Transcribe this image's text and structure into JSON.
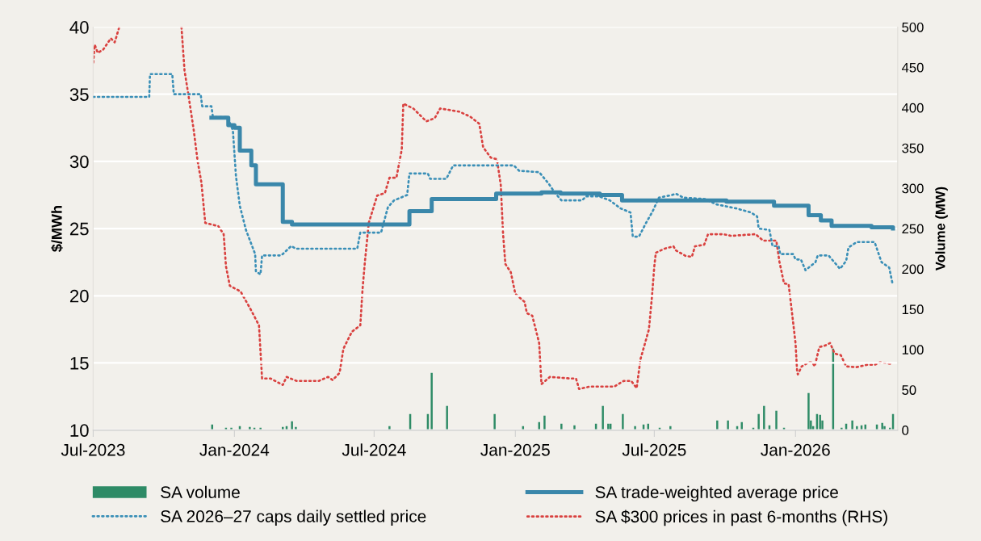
{
  "chart_data": {
    "type": "line",
    "ylabel": "$/MWh",
    "y2label": "Volume (MW)",
    "xlim": [
      "2023-07-01",
      "2026-05-14"
    ],
    "xticks": [
      {
        "value": "2023-07-01",
        "label": "Jul-2023"
      },
      {
        "value": "2024-01-01",
        "label": "Jan-2024"
      },
      {
        "value": "2024-07-01",
        "label": "Jul-2024"
      },
      {
        "value": "2025-01-01",
        "label": "Jan-2025"
      },
      {
        "value": "2025-07-01",
        "label": "Jul-2025"
      },
      {
        "value": "2026-01-01",
        "label": "Jan-2026"
      }
    ],
    "ylim": [
      10,
      40
    ],
    "yticks": [
      10,
      15,
      20,
      25,
      30,
      35,
      40
    ],
    "y2lim": [
      0,
      500
    ],
    "y2ticks": [
      0,
      50,
      100,
      150,
      200,
      250,
      300,
      350,
      400,
      450,
      500
    ],
    "grid": "y",
    "legend": "bottom",
    "series": [
      {
        "name": "SA volume",
        "type": "bar",
        "axis": "y2",
        "color": "#2e8b66",
        "x": [
          "2023-12-03",
          "2023-12-21",
          "2023-12-28",
          "2024-01-08",
          "2024-01-21",
          "2024-01-27",
          "2024-02-04",
          "2024-03-04",
          "2024-03-09",
          "2024-03-16",
          "2024-03-21",
          "2024-07-21",
          "2024-08-17",
          "2024-09-09",
          "2024-09-14",
          "2024-10-04",
          "2024-12-05",
          "2025-01-11",
          "2025-02-01",
          "2025-02-08",
          "2025-03-02",
          "2025-03-19",
          "2025-04-16",
          "2025-04-25",
          "2025-05-02",
          "2025-05-05",
          "2025-05-21",
          "2025-06-06",
          "2025-06-17",
          "2025-06-23",
          "2025-07-08",
          "2025-07-22",
          "2025-09-21",
          "2025-10-05",
          "2025-10-17",
          "2025-10-23",
          "2025-11-07",
          "2025-11-14",
          "2025-11-21",
          "2025-11-28",
          "2025-12-07",
          "2025-12-17",
          "2026-01-18",
          "2026-01-21",
          "2026-01-24",
          "2026-01-29",
          "2026-02-02",
          "2026-02-05",
          "2026-02-19",
          "2026-03-02",
          "2026-03-08",
          "2026-03-16",
          "2026-03-22",
          "2026-03-28",
          "2026-04-02",
          "2026-04-17",
          "2026-04-24",
          "2026-04-27",
          "2026-05-04",
          "2026-05-08"
        ],
        "values": [
          7,
          3,
          3,
          5,
          4,
          3,
          3,
          4,
          5,
          11,
          4,
          5,
          20,
          20,
          71,
          30,
          20,
          5,
          10,
          18,
          8,
          6,
          8,
          30,
          8,
          8,
          20,
          5,
          7,
          8,
          3,
          5,
          12,
          12,
          5,
          10,
          3,
          20,
          30,
          6,
          24,
          3,
          46,
          12,
          5,
          20,
          19,
          12,
          101,
          3,
          8,
          12,
          5,
          6,
          7,
          7,
          9,
          5,
          3,
          20
        ]
      },
      {
        "name": "SA 2026–27 caps daily settled price",
        "line_style": "dotted",
        "color": "#3a8fb7",
        "x": [
          "2023-07-01",
          "2023-09-12",
          "2023-09-13",
          "2023-10-12",
          "2023-10-14",
          "2023-11-18",
          "2023-11-20",
          "2023-12-02",
          "2023-12-04",
          "2023-12-23",
          "2023-12-30",
          "2024-01-03",
          "2024-01-08",
          "2024-01-16",
          "2024-01-28",
          "2024-01-29",
          "2024-02-04",
          "2024-02-06",
          "2024-03-02",
          "2024-03-15",
          "2024-03-21",
          "2024-06-09",
          "2024-06-13",
          "2024-07-10",
          "2024-07-19",
          "2024-07-27",
          "2024-08-13",
          "2024-08-16",
          "2024-09-09",
          "2024-09-12",
          "2024-10-03",
          "2024-10-12",
          "2024-12-30",
          "2025-01-06",
          "2025-02-01",
          "2025-02-14",
          "2025-02-21",
          "2025-03-02",
          "2025-03-29",
          "2025-04-03",
          "2025-04-20",
          "2025-05-04",
          "2025-05-18",
          "2025-05-31",
          "2025-06-03",
          "2025-06-11",
          "2025-06-21",
          "2025-06-29",
          "2025-07-07",
          "2025-07-24",
          "2025-07-29",
          "2025-08-08",
          "2025-09-05",
          "2025-09-20",
          "2025-10-16",
          "2025-11-04",
          "2025-11-12",
          "2025-11-14",
          "2025-11-28",
          "2025-12-02",
          "2025-12-10",
          "2025-12-12",
          "2025-12-29",
          "2026-01-01",
          "2026-01-08",
          "2026-01-14",
          "2026-01-27",
          "2026-01-30",
          "2026-02-13",
          "2026-02-28",
          "2026-03-08",
          "2026-03-11",
          "2026-03-22",
          "2026-04-14",
          "2026-04-23",
          "2026-05-03",
          "2026-05-07"
        ],
        "values": [
          34.8,
          34.8,
          36.5,
          36.5,
          35.0,
          35.0,
          34.1,
          34.1,
          33.3,
          33.3,
          32.3,
          28.9,
          26.7,
          24.9,
          23.1,
          21.8,
          21.6,
          23.0,
          23.0,
          23.7,
          23.5,
          23.5,
          24.7,
          24.7,
          26.6,
          27.1,
          27.5,
          29.1,
          29.1,
          28.7,
          28.7,
          29.7,
          29.7,
          29.3,
          29.2,
          28.3,
          27.7,
          27.1,
          27.1,
          27.4,
          27.4,
          27.1,
          26.5,
          26.2,
          24.4,
          24.4,
          25.5,
          26.3,
          27.3,
          27.5,
          27.6,
          27.3,
          27.2,
          26.8,
          26.5,
          26.2,
          25.9,
          25.0,
          24.9,
          23.7,
          23.7,
          23.1,
          23.1,
          22.7,
          22.7,
          21.9,
          22.5,
          23.0,
          23.0,
          22.0,
          22.6,
          23.6,
          24.0,
          24.0,
          22.5,
          22.1,
          21.0
        ]
      },
      {
        "name": "SA trade-weighted average price",
        "type": "step",
        "line_style": "solid",
        "color": "#3a87aa",
        "x": [
          "2023-12-02",
          "2023-12-24",
          "2024-01-01",
          "2024-01-08",
          "2024-01-23",
          "2024-01-29",
          "2024-03-04",
          "2024-03-16",
          "2024-08-16",
          "2024-09-14",
          "2024-12-07",
          "2025-02-04",
          "2025-03-01",
          "2025-04-21",
          "2025-05-20",
          "2025-10-03",
          "2025-12-04",
          "2026-01-18",
          "2026-02-03",
          "2026-02-17",
          "2026-04-10",
          "2026-05-08"
        ],
        "values": [
          33.25,
          32.7,
          32.5,
          30.8,
          29.7,
          28.3,
          25.5,
          25.3,
          26.3,
          27.2,
          27.6,
          27.7,
          27.6,
          27.5,
          27.1,
          27.0,
          26.7,
          26.0,
          25.6,
          25.2,
          25.1,
          25.0
        ]
      },
      {
        "name": "SA $300 prices in past 6-months (RHS)",
        "type": "line",
        "axis": "y2",
        "line_style": "dotted",
        "color": "#d9413f",
        "x": [
          "2023-07-01",
          "2023-07-03",
          "2023-07-07",
          "2023-07-14",
          "2023-07-24",
          "2023-07-29",
          "2023-08-04",
          "2023-09-15",
          "2023-10-24",
          "2023-10-28",
          "2023-11-02",
          "2023-11-09",
          "2023-11-14",
          "2023-11-19",
          "2023-11-24",
          "2023-12-11",
          "2023-12-18",
          "2023-12-21",
          "2023-12-26",
          "2024-01-09",
          "2024-01-22",
          "2024-02-02",
          "2024-02-06",
          "2024-02-17",
          "2024-03-04",
          "2024-03-09",
          "2024-03-22",
          "2024-04-20",
          "2024-05-02",
          "2024-05-08",
          "2024-05-17",
          "2024-05-22",
          "2024-06-02",
          "2024-06-13",
          "2024-06-16",
          "2024-06-19",
          "2024-06-24",
          "2024-07-05",
          "2024-07-15",
          "2024-07-21",
          "2024-07-30",
          "2024-08-06",
          "2024-08-08",
          "2024-08-21",
          "2024-09-07",
          "2024-09-18",
          "2024-09-25",
          "2024-10-20",
          "2024-11-03",
          "2024-11-15",
          "2024-11-20",
          "2024-11-30",
          "2024-12-08",
          "2024-12-13",
          "2024-12-16",
          "2024-12-19",
          "2024-12-26",
          "2025-01-01",
          "2025-01-13",
          "2025-01-16",
          "2025-01-23",
          "2025-02-01",
          "2025-02-04",
          "2025-02-15",
          "2025-03-14",
          "2025-03-21",
          "2025-03-25",
          "2025-04-08",
          "2025-05-10",
          "2025-05-22",
          "2025-06-01",
          "2025-06-08",
          "2025-06-13",
          "2025-06-19",
          "2025-06-24",
          "2025-06-28",
          "2025-07-01",
          "2025-07-03",
          "2025-07-14",
          "2025-07-26",
          "2025-07-29",
          "2025-08-11",
          "2025-08-19",
          "2025-08-23",
          "2025-09-04",
          "2025-09-09",
          "2025-09-29",
          "2025-10-09",
          "2025-11-10",
          "2025-11-20",
          "2025-12-07",
          "2025-12-11",
          "2025-12-17",
          "2025-12-23",
          "2025-12-27",
          "2026-01-01",
          "2026-01-03",
          "2026-01-04",
          "2026-01-09",
          "2026-01-18",
          "2026-01-23",
          "2026-01-26",
          "2026-02-01",
          "2026-02-09",
          "2026-02-15",
          "2026-02-21",
          "2026-03-01",
          "2026-03-08",
          "2026-03-21",
          "2026-04-04",
          "2026-04-14",
          "2026-04-21",
          "2026-05-08"
        ],
        "values": [
          456,
          478,
          468,
          472,
          486,
          481,
          500,
          null,
          500,
          446,
          416,
          372,
          334,
          307,
          257,
          253,
          243,
          203,
          179,
          172,
          150,
          130,
          64,
          64,
          56,
          66,
          61,
          61,
          66,
          62,
          71,
          101,
          122,
          130,
          176,
          209,
          257,
          291,
          294,
          313,
          313,
          348,
          405,
          399,
          383,
          387,
          399,
          395,
          389,
          380,
          351,
          338,
          336,
          304,
          243,
          206,
          196,
          169,
          159,
          145,
          142,
          108,
          57,
          66,
          64,
          64,
          51,
          54,
          54,
          61,
          61,
          52,
          88,
          108,
          125,
          166,
          203,
          220,
          225,
          228,
          223,
          216,
          215,
          228,
          230,
          243,
          243,
          241,
          243,
          235,
          235,
          209,
          182,
          181,
          149,
          108,
          74,
          69,
          79,
          84,
          84,
          79,
          103,
          105,
          108,
          95,
          93,
          79,
          78,
          81,
          81,
          84,
          82
        ]
      }
    ]
  }
}
